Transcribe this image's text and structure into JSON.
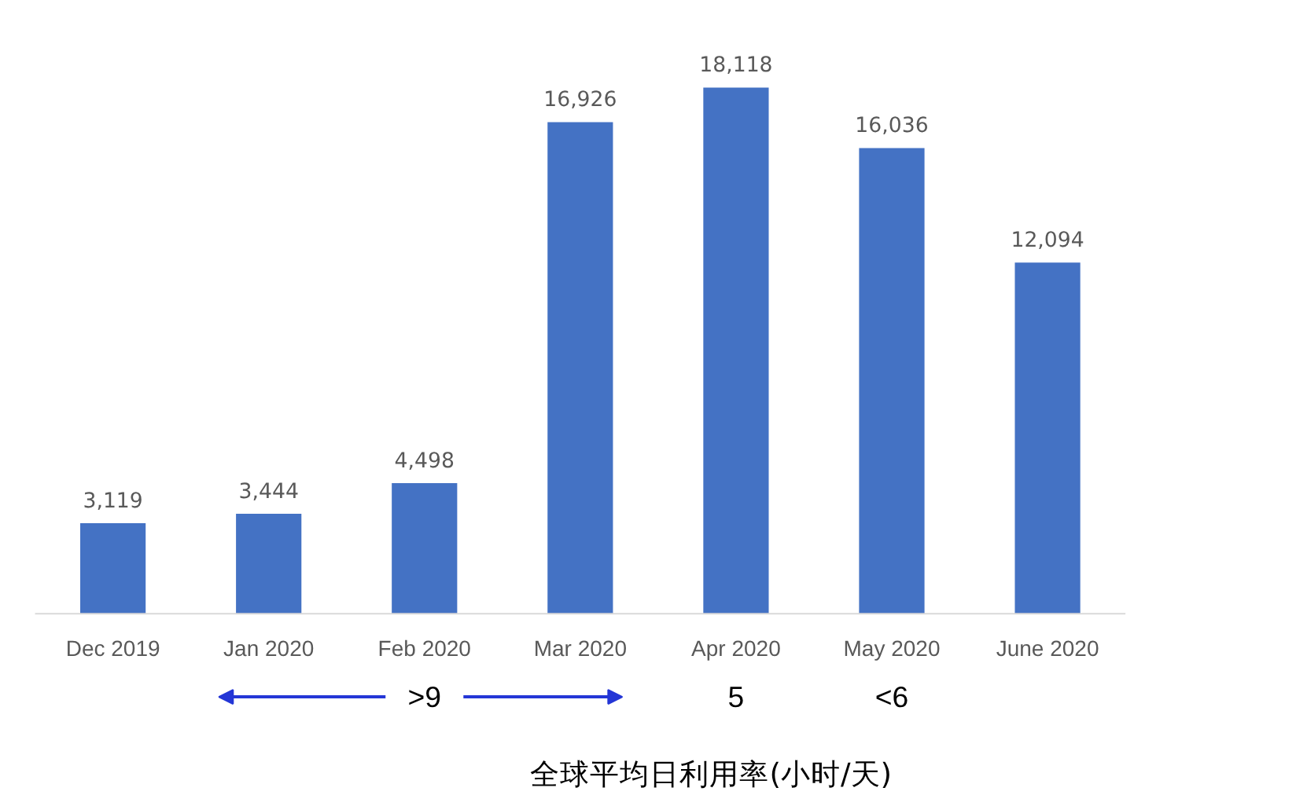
{
  "chart_data": {
    "type": "bar",
    "categories": [
      "Dec 2019",
      "Jan 2020",
      "Feb 2020",
      "Mar 2020",
      "Apr 2020",
      "May 2020",
      "June 2020"
    ],
    "values": [
      3119,
      3444,
      4498,
      16926,
      18118,
      16036,
      12094
    ],
    "value_labels": [
      "3,119",
      "3,444",
      "4,498",
      "16,926",
      "18,118",
      "16,036",
      "12,094"
    ],
    "color": "#4472c4",
    "annotations": [
      ">9",
      "5",
      "<6",
      "全球平均日利用率(小时/天)"
    ]
  }
}
